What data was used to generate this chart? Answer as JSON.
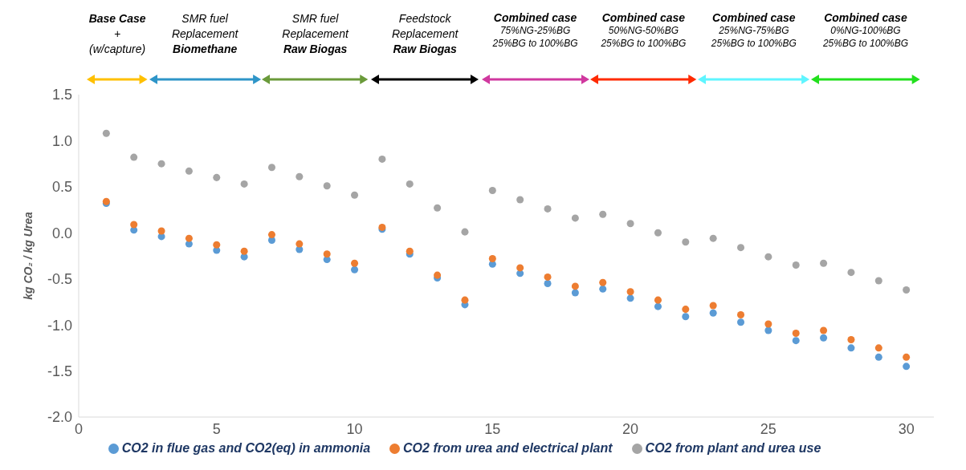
{
  "chart_data": {
    "type": "scatter",
    "ylabel": "kg CO₂ / kg Urea",
    "x": [
      1,
      2,
      3,
      4,
      5,
      6,
      7,
      8,
      9,
      10,
      11,
      12,
      13,
      14,
      15,
      16,
      17,
      18,
      19,
      20,
      21,
      22,
      23,
      24,
      25,
      26,
      27,
      28,
      29,
      30
    ],
    "xlim": [
      0,
      31
    ],
    "xticks": [
      0,
      5,
      10,
      15,
      20,
      25,
      30
    ],
    "ylim": [
      -2.0,
      1.5
    ],
    "yticks": [
      {
        "value": -2,
        "label": "-2.0"
      },
      {
        "value": -1.5,
        "label": "-1.5"
      },
      {
        "value": -1,
        "label": "-1.0"
      },
      {
        "value": -0.5,
        "label": "-0.5"
      },
      {
        "value": 0,
        "label": "0.0"
      },
      {
        "value": 0.5,
        "label": "0.5"
      },
      {
        "value": 1,
        "label": "1.0"
      },
      {
        "value": 1.5,
        "label": "1.5"
      }
    ],
    "grid": false,
    "legend": "bottom",
    "marker": "circle",
    "series": [
      {
        "name": "CO2 in flue gas and CO2(eq) in ammonia",
        "color": "#5b9bd5",
        "values": [
          0.32,
          0.03,
          -0.04,
          -0.12,
          -0.19,
          -0.26,
          -0.08,
          -0.18,
          -0.29,
          -0.4,
          0.04,
          -0.23,
          -0.49,
          -0.78,
          -0.34,
          -0.44,
          -0.55,
          -0.65,
          -0.61,
          -0.71,
          -0.8,
          -0.91,
          -0.87,
          -0.97,
          -1.06,
          -1.17,
          -1.14,
          -1.25,
          -1.35,
          -1.45
        ]
      },
      {
        "name": "CO2 from urea and electrical plant",
        "color": "#ed7d31",
        "values": [
          0.34,
          0.09,
          0.02,
          -0.06,
          -0.13,
          -0.2,
          -0.02,
          -0.12,
          -0.23,
          -0.33,
          0.06,
          -0.2,
          -0.46,
          -0.73,
          -0.28,
          -0.38,
          -0.48,
          -0.58,
          -0.54,
          -0.64,
          -0.73,
          -0.83,
          -0.79,
          -0.89,
          -0.99,
          -1.09,
          -1.06,
          -1.16,
          -1.25,
          -1.35
        ]
      },
      {
        "name": "CO2 from plant and urea use",
        "color": "#a5a5a5",
        "values": [
          1.08,
          0.82,
          0.75,
          0.67,
          0.6,
          0.53,
          0.71,
          0.61,
          0.51,
          0.41,
          0.8,
          0.53,
          0.27,
          0.01,
          0.46,
          0.36,
          0.26,
          0.16,
          0.2,
          0.1,
          0.0,
          -0.1,
          -0.06,
          -0.16,
          -0.26,
          -0.35,
          -0.33,
          -0.43,
          -0.52,
          -0.62
        ]
      }
    ],
    "annotations": [
      "Base Case\n+\n(w/capture)",
      "SMR fuel\nReplacement\nBiomethane",
      "SMR fuel\nReplacement\nRaw Biogas",
      "Feedstock\nReplacement\nRaw Biogas",
      "Combined case\n75%NG-25%BG\n25%BG to 100%BG",
      "Combined case\n50%NG-50%BG\n25%BG to 100%BG",
      "Combined case\n25%NG-75%BG\n25%BG to 100%BG",
      "Combined case\n0%NG-100%BG\n25%BG to 100%BG"
    ]
  }
}
